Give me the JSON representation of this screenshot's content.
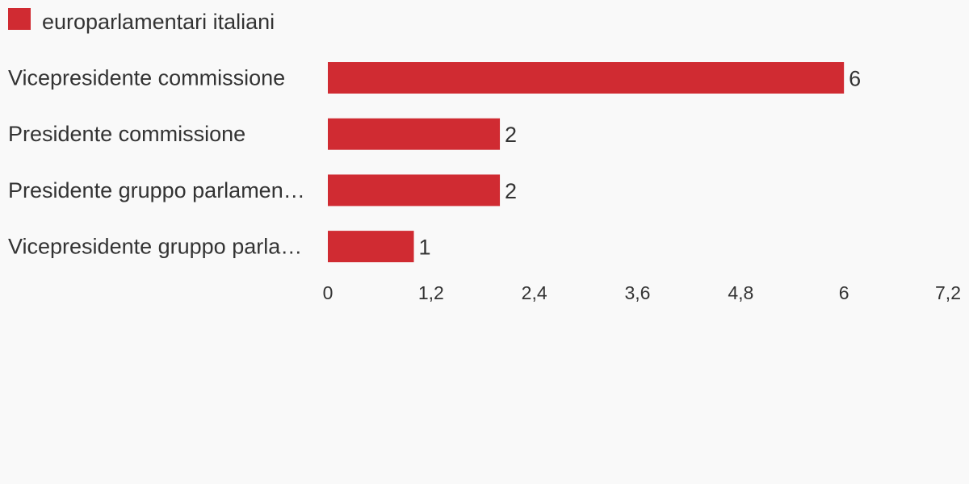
{
  "chart_data": {
    "type": "bar",
    "orientation": "horizontal",
    "categories": [
      "Vicepresidente commissione",
      "Presidente commissione",
      "Presidente gruppo parlamen…",
      "Vicepresidente gruppo parla…"
    ],
    "series": [
      {
        "name": "europarlamentari italiani",
        "values": [
          6,
          2,
          2,
          1
        ],
        "color": "#d02b32"
      }
    ],
    "x_ticks": [
      "0",
      "1,2",
      "2,4",
      "3,6",
      "4,8",
      "6",
      "7,2"
    ],
    "xlim": [
      0,
      7.2
    ],
    "grid": false,
    "legend": "top-left",
    "title": "",
    "xlabel": "",
    "ylabel": ""
  }
}
